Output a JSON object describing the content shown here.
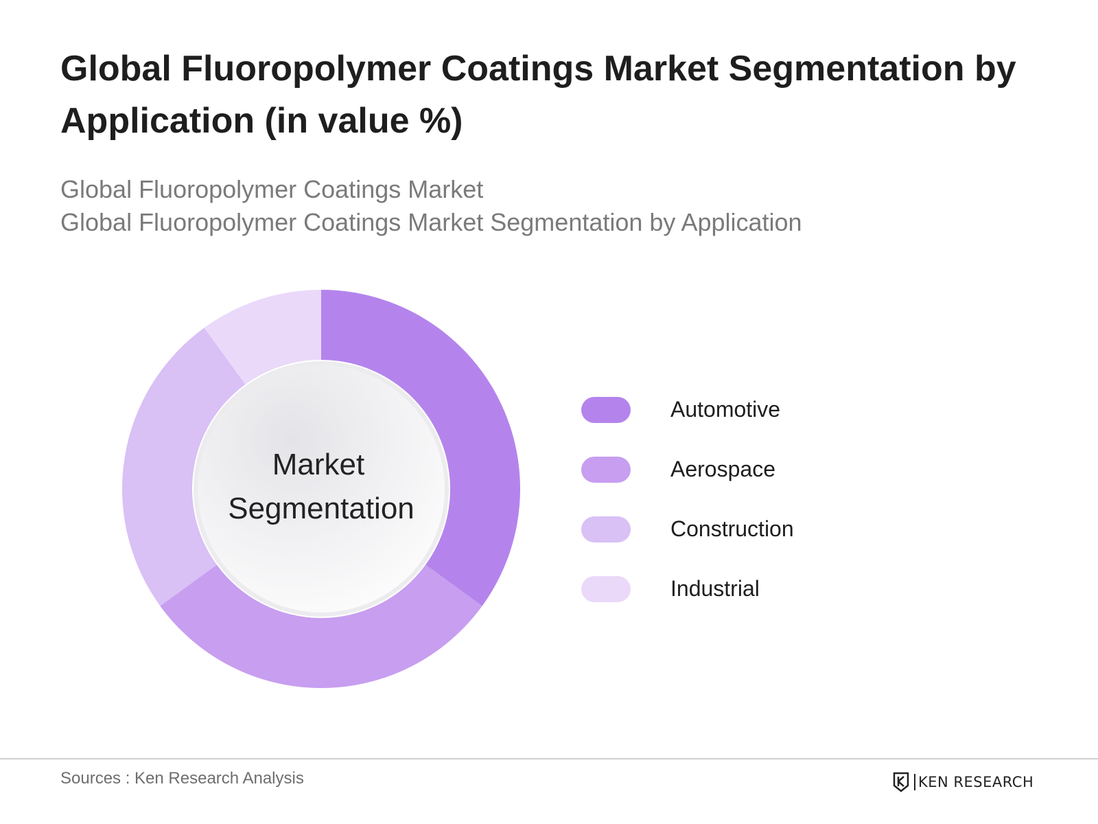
{
  "title": "Global Fluoropolymer Coatings Market Segmentation by Application (in value %)",
  "subtitle_line1": "Global Fluoropolymer Coatings Market",
  "subtitle_line2": "Global Fluoropolymer Coatings Market Segmentation by Application",
  "center_label_line1": "Market",
  "center_label_line2": "Segmentation",
  "chart_data": {
    "type": "pie",
    "donut": true,
    "categories": [
      "Automotive",
      "Aerospace",
      "Construction",
      "Industrial"
    ],
    "values": [
      35,
      30,
      25,
      10
    ],
    "colors": [
      "#b484ec",
      "#c79ef0",
      "#d9c0f5",
      "#ead9f9"
    ],
    "legend_position": "right"
  },
  "footer": {
    "sources": "Sources : Ken Research Analysis",
    "logo_text": "KEN RESEARCH"
  }
}
